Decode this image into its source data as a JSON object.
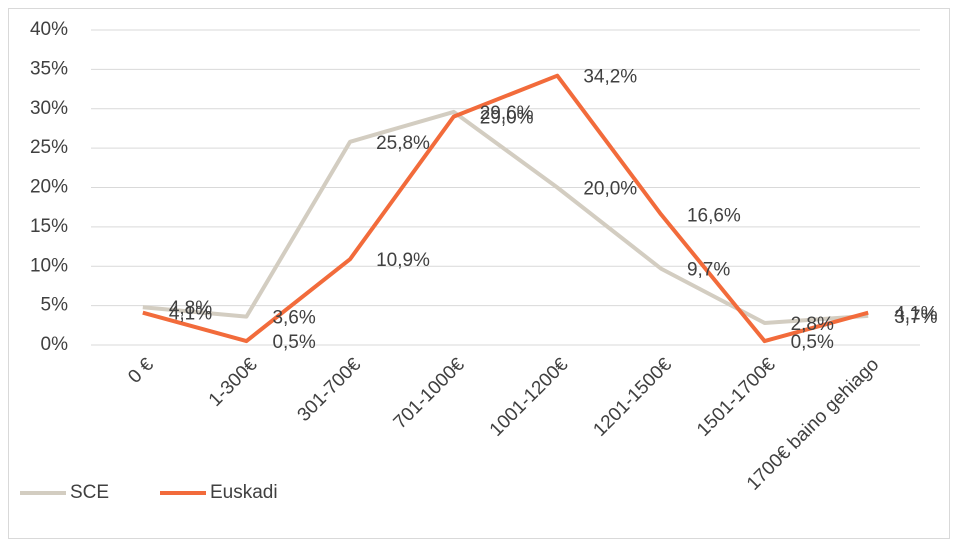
{
  "chart_data": {
    "type": "line",
    "categories": [
      "0 €",
      "1-300€",
      "301-700€",
      "701-1000€",
      "1001-1200€",
      "1201-1500€",
      "1501-1700€",
      "1700€ baino gehiago"
    ],
    "series": [
      {
        "name": "SCE",
        "color": "#d3cdc1",
        "values": [
          4.8,
          3.6,
          25.8,
          29.6,
          20.0,
          9.7,
          2.8,
          3.7
        ],
        "value_labels": [
          "4,8%",
          "3,6%",
          "25,8%",
          "29,6%",
          "20,0%",
          "9,7%",
          "2,8%",
          "3,7%"
        ]
      },
      {
        "name": "Euskadi",
        "color": "#f26b3b",
        "values": [
          4.1,
          0.5,
          10.9,
          29.0,
          34.2,
          16.6,
          0.5,
          4.1
        ],
        "value_labels": [
          "4,1%",
          "0,5%",
          "10,9%",
          "29,0%",
          "34,2%",
          "16,6%",
          "0,5%",
          "4,1%"
        ]
      }
    ],
    "ylim": [
      0,
      40
    ],
    "yticks": [
      {
        "value": 0,
        "label": "0%"
      },
      {
        "value": 5,
        "label": "5%"
      },
      {
        "value": 10,
        "label": "10%"
      },
      {
        "value": 15,
        "label": "15%"
      },
      {
        "value": 20,
        "label": "20%"
      },
      {
        "value": 25,
        "label": "25%"
      },
      {
        "value": 30,
        "label": "30%"
      },
      {
        "value": 35,
        "label": "35%"
      },
      {
        "value": 40,
        "label": "40%"
      }
    ],
    "grid": true,
    "legend": "bottom-left"
  }
}
